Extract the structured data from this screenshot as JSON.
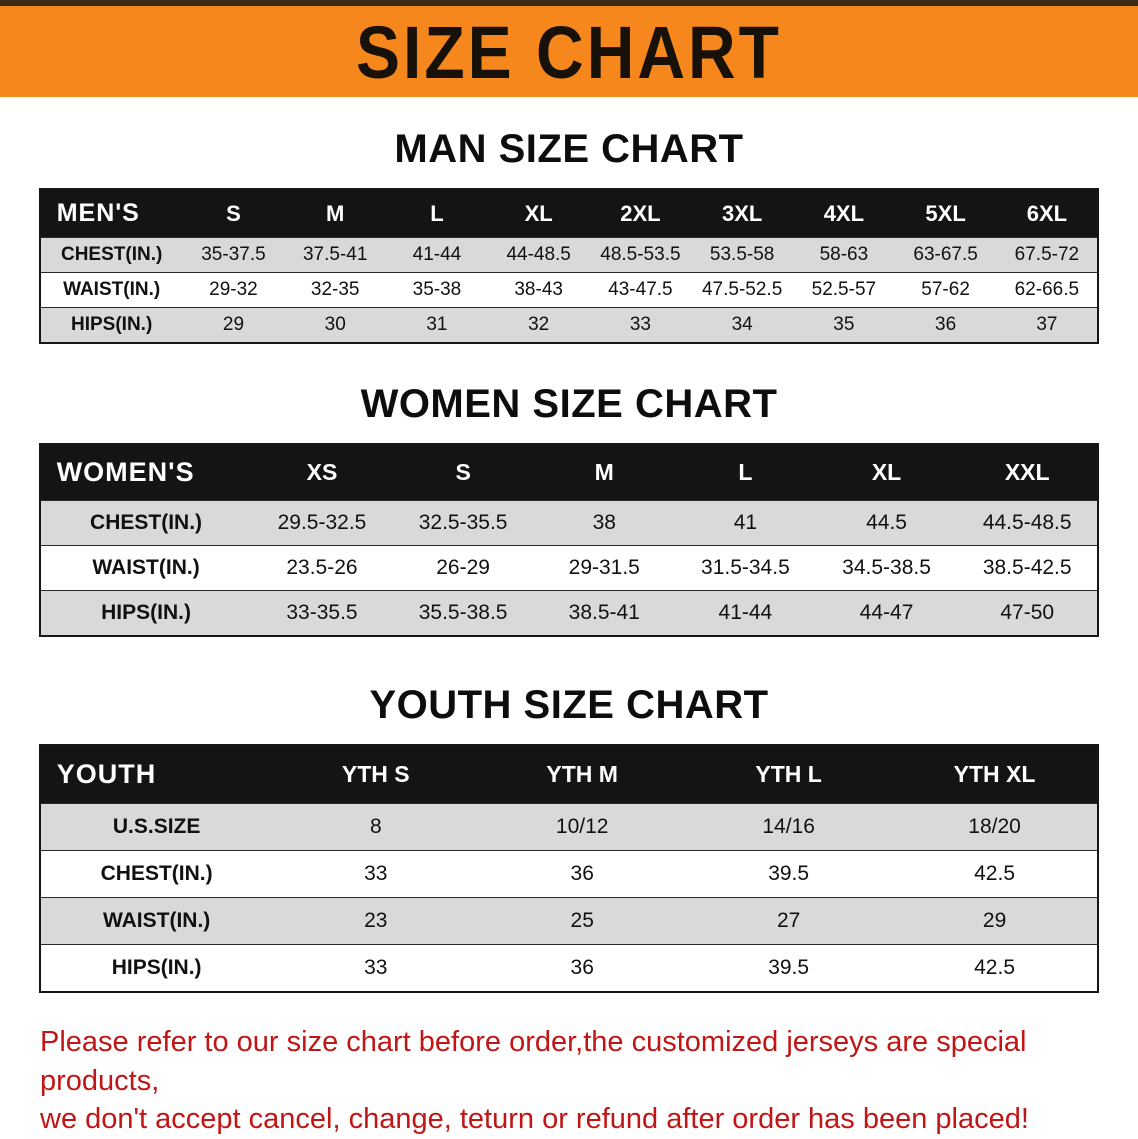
{
  "banner": {
    "title": "SIZE CHART"
  },
  "colors": {
    "banner_orange": "#f6871d",
    "table_header_black": "#141414",
    "stripe_gray": "#d9d9d9",
    "notice_red": "#c01616"
  },
  "sections": [
    {
      "heading": "MAN SIZE CHART",
      "table": {
        "header": [
          "MEN'S",
          "S",
          "M",
          "L",
          "XL",
          "2XL",
          "3XL",
          "4XL",
          "5XL",
          "6XL"
        ],
        "rows": [
          {
            "label": "CHEST(IN.)",
            "values": [
              "35-37.5",
              "37.5-41",
              "41-44",
              "44-48.5",
              "48.5-53.5",
              "53.5-58",
              "58-63",
              "63-67.5",
              "67.5-72"
            ]
          },
          {
            "label": "WAIST(IN.)",
            "values": [
              "29-32",
              "32-35",
              "35-38",
              "38-43",
              "43-47.5",
              "47.5-52.5",
              "52.5-57",
              "57-62",
              "62-66.5"
            ]
          },
          {
            "label": "HIPS(IN.)",
            "values": [
              "29",
              "30",
              "31",
              "32",
              "33",
              "34",
              "35",
              "36",
              "37"
            ]
          }
        ]
      }
    },
    {
      "heading": "WOMEN SIZE CHART",
      "table": {
        "header": [
          "WOMEN'S",
          "XS",
          "S",
          "M",
          "L",
          "XL",
          "XXL"
        ],
        "rows": [
          {
            "label": "CHEST(IN.)",
            "values": [
              "29.5-32.5",
              "32.5-35.5",
              "38",
              "41",
              "44.5",
              "44.5-48.5"
            ]
          },
          {
            "label": "WAIST(IN.)",
            "values": [
              "23.5-26",
              "26-29",
              "29-31.5",
              "31.5-34.5",
              "34.5-38.5",
              "38.5-42.5"
            ]
          },
          {
            "label": "HIPS(IN.)",
            "values": [
              "33-35.5",
              "35.5-38.5",
              "38.5-41",
              "41-44",
              "44-47",
              "47-50"
            ]
          }
        ]
      }
    },
    {
      "heading": "YOUTH SIZE CHART",
      "table": {
        "header": [
          "YOUTH",
          "YTH S",
          "YTH M",
          "YTH L",
          "YTH XL"
        ],
        "rows": [
          {
            "label": "U.S.SIZE",
            "values": [
              "8",
              "10/12",
              "14/16",
              "18/20"
            ]
          },
          {
            "label": "CHEST(IN.)",
            "values": [
              "33",
              "36",
              "39.5",
              "42.5"
            ]
          },
          {
            "label": "WAIST(IN.)",
            "values": [
              "23",
              "25",
              "27",
              "29"
            ]
          },
          {
            "label": "HIPS(IN.)",
            "values": [
              "33",
              "36",
              "39.5",
              "42.5"
            ]
          }
        ]
      }
    }
  ],
  "footer": {
    "line1": "Please refer to our size chart before order,the customized jerseys are special products,",
    "line2": "we don't accept cancel, change, teturn or refund after order has been placed!"
  }
}
